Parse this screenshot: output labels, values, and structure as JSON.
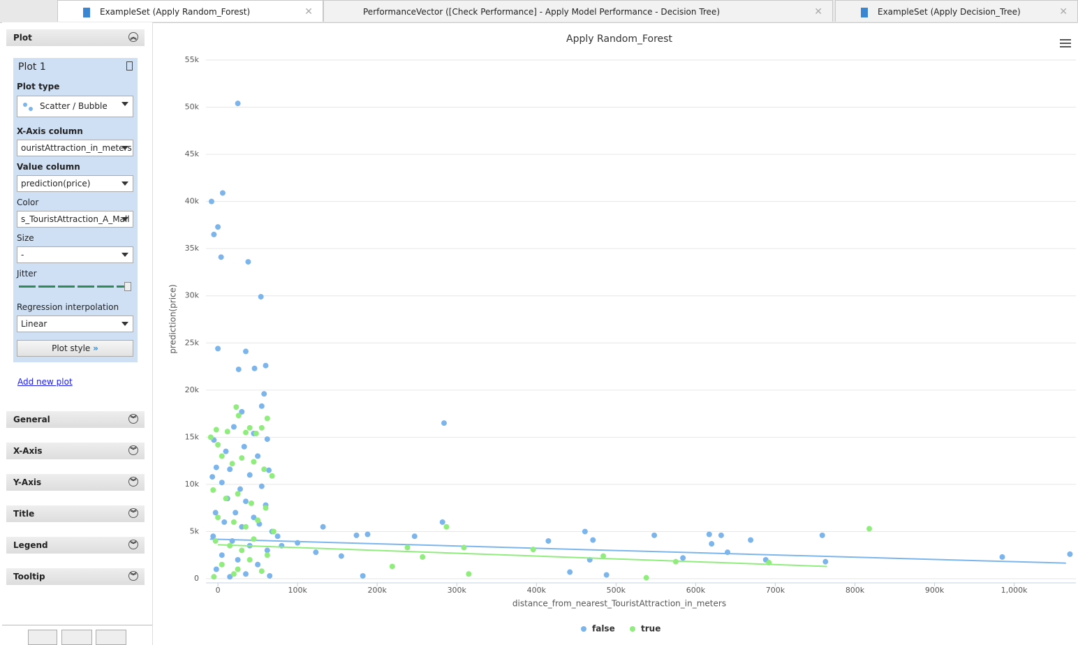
{
  "tabs": [
    "ExampleSet (Apply Random_Forest)",
    "PerformanceVector ([Check Performance] - Apply Model Performance - Decision Tree)",
    "ExampleSet (Apply Decision_Tree)"
  ],
  "sidebar": {
    "section": "Plot",
    "plot_name": "Plot 1",
    "fields": [
      {
        "label": "Plot type",
        "value": "Scatter / Bubble"
      },
      {
        "label": "X-Axis column",
        "value": "ouristAttraction_in_meters"
      },
      {
        "label": "Value column",
        "value": "prediction(price)"
      },
      {
        "label": "Color",
        "value": "s_TouristAttraction_A_Mall"
      },
      {
        "label": "Size",
        "value": "-"
      },
      {
        "label": "Jitter"
      },
      {
        "label": "Regression interpolation",
        "value": "Linear"
      }
    ],
    "plot_style": "Plot style",
    "add_plot": "Add new plot",
    "sections": [
      "General",
      "X-Axis",
      "Y-Axis",
      "Title",
      "Legend",
      "Tooltip"
    ]
  },
  "chart_data": {
    "type": "scatter",
    "title": "Apply Random_Forest",
    "x_label": "distance_from_nearest_TouristAttraction_in_meters",
    "y_label": "prediction(price)",
    "xlim": [
      -15000,
      1074000
    ],
    "ylim": [
      0,
      55000
    ],
    "xticks": [
      0,
      {
        "value": 100000,
        "label": "100k"
      },
      {
        "value": 200000,
        "label": "200k"
      },
      {
        "value": 300000,
        "label": "300k"
      },
      {
        "value": 400000,
        "label": "400k"
      },
      {
        "value": 500000,
        "label": "500k"
      },
      {
        "value": 600000,
        "label": "600k"
      },
      {
        "value": 700000,
        "label": "700k"
      },
      {
        "value": 800000,
        "label": "800k"
      },
      {
        "value": 900000,
        "label": "900k"
      },
      {
        "value": 1000000,
        "label": "1,000k"
      }
    ],
    "yticks": [
      0,
      {
        "value": 5000,
        "label": "5k"
      },
      {
        "value": 10000,
        "label": "10k"
      },
      {
        "value": 15000,
        "label": "15k"
      },
      {
        "value": 20000,
        "label": "20k"
      },
      {
        "value": 25000,
        "label": "25k"
      },
      {
        "value": 30000,
        "label": "30k"
      },
      {
        "value": 35000,
        "label": "35k"
      },
      {
        "value": 40000,
        "label": "40k"
      },
      {
        "value": 45000,
        "label": "45k"
      },
      {
        "value": 50000,
        "label": "50k"
      },
      {
        "value": 55000,
        "label": "55k"
      }
    ],
    "grid": true,
    "legend": "bottom",
    "series": [
      {
        "name": "false",
        "color": "#7cb5ec",
        "x": [
          25000,
          -8000,
          6000,
          -5000,
          0,
          4000,
          38000,
          54000,
          0,
          35000,
          26000,
          46000,
          60000,
          58000,
          55000,
          30000,
          -5000,
          20000,
          45000,
          62000,
          10000,
          33000,
          50000,
          -2000,
          15000,
          40000,
          64000,
          -7000,
          5000,
          28000,
          55000,
          12000,
          35000,
          60000,
          -3000,
          22000,
          45000,
          8000,
          30000,
          52000,
          68000,
          -6000,
          18000,
          40000,
          62000,
          5000,
          25000,
          50000,
          -2000,
          35000,
          65000,
          15000,
          75000,
          80000,
          100000,
          123000,
          132000,
          155000,
          174000,
          182000,
          188000,
          247000,
          282000,
          284000,
          415000,
          442000,
          461000,
          467000,
          471000,
          488000,
          548000,
          584000,
          617000,
          620000,
          632000,
          640000,
          669000,
          688000,
          759000,
          763000,
          985000,
          1070000
        ],
        "values": [
          50400,
          40000,
          40900,
          36500,
          37300,
          34100,
          33600,
          29900,
          24400,
          24100,
          22200,
          22300,
          22600,
          19600,
          18300,
          17700,
          14700,
          16100,
          15400,
          14800,
          13500,
          14000,
          13000,
          11800,
          11600,
          11000,
          11500,
          10800,
          10200,
          9500,
          9800,
          8500,
          8200,
          7800,
          7000,
          7000,
          6500,
          6000,
          5500,
          5800,
          5000,
          4500,
          4000,
          3500,
          3000,
          2500,
          2000,
          1500,
          1000,
          500,
          300,
          200,
          4500,
          3500,
          3800,
          2800,
          5500,
          2400,
          4600,
          300,
          4700,
          4500,
          6000,
          16500,
          4000,
          700,
          5000,
          2000,
          4100,
          400,
          4600,
          2200,
          4700,
          3700,
          4600,
          2800,
          4100,
          2000,
          4600,
          1800,
          2300,
          2600
        ],
        "trend_x": [
          -10000,
          1065000
        ],
        "trend_y": [
          4200,
          1650
        ]
      },
      {
        "name": "true",
        "color": "#90ed7d",
        "x": [
          23000,
          26000,
          -9000,
          0,
          -2000,
          12000,
          40000,
          48000,
          55000,
          62000,
          35000,
          5000,
          18000,
          30000,
          45000,
          58000,
          68000,
          -6000,
          10000,
          25000,
          42000,
          60000,
          0,
          20000,
          35000,
          50000,
          70000,
          -3000,
          15000,
          30000,
          45000,
          62000,
          5000,
          25000,
          40000,
          55000,
          -5000,
          20000,
          238000,
          257000,
          287000,
          309000,
          315000,
          219000,
          396000,
          484000,
          538000,
          575000,
          692000,
          818000
        ],
        "values": [
          18200,
          17300,
          15000,
          14200,
          15800,
          15600,
          16000,
          15400,
          16000,
          17000,
          15500,
          13000,
          12200,
          12800,
          12400,
          11600,
          10900,
          9400,
          8500,
          9000,
          8000,
          7500,
          6500,
          6000,
          5500,
          6200,
          5000,
          4000,
          3500,
          3000,
          4200,
          2500,
          1500,
          1000,
          2000,
          800,
          200,
          500,
          3300,
          2300,
          5500,
          3300,
          500,
          1300,
          3100,
          2400,
          100,
          1800,
          1700,
          5300
        ],
        "trend_x": [
          0,
          765000
        ],
        "trend_y": [
          3600,
          1300
        ]
      }
    ]
  }
}
